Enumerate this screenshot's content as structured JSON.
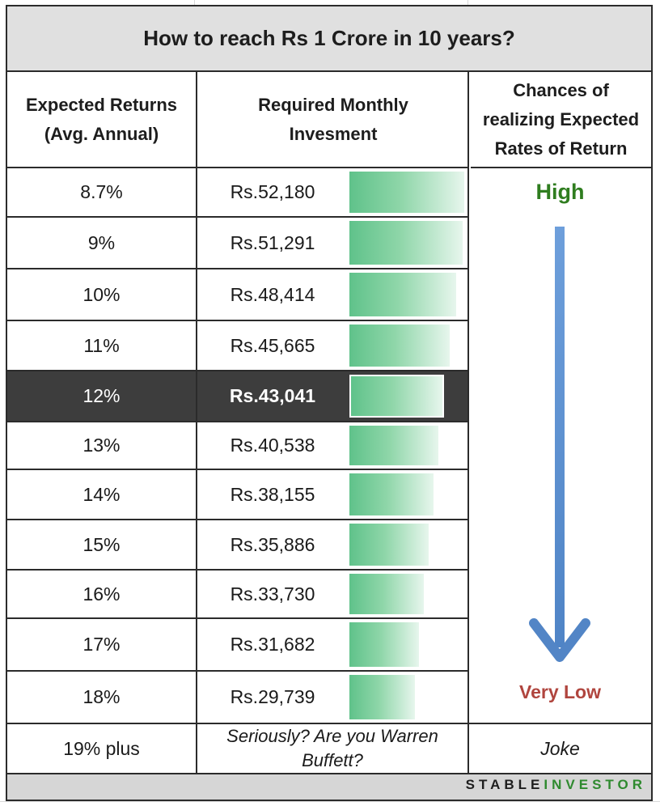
{
  "title": "How to reach Rs 1 Crore in 10 years?",
  "headers": {
    "returns": [
      "Expected Returns",
      "(Avg. Annual)"
    ],
    "investment": [
      "Required Monthly",
      "Invesment"
    ],
    "chances": [
      "Chances of",
      "realizing Expected",
      "Rates of Return"
    ]
  },
  "rows": [
    {
      "return": "8.7%",
      "investment": "Rs.52,180",
      "value": 52180
    },
    {
      "return": "9%",
      "investment": "Rs.51,291",
      "value": 51291
    },
    {
      "return": "10%",
      "investment": "Rs.48,414",
      "value": 48414
    },
    {
      "return": "11%",
      "investment": "Rs.45,665",
      "value": 45665
    },
    {
      "return": "12%",
      "investment": "Rs.43,041",
      "value": 43041,
      "highlighted": true
    },
    {
      "return": "13%",
      "investment": "Rs.40,538",
      "value": 40538
    },
    {
      "return": "14%",
      "investment": "Rs.38,155",
      "value": 38155
    },
    {
      "return": "15%",
      "investment": "Rs.35,886",
      "value": 35886
    },
    {
      "return": "16%",
      "investment": "Rs.33,730",
      "value": 33730
    },
    {
      "return": "17%",
      "investment": "Rs.31,682",
      "value": 31682
    },
    {
      "return": "18%",
      "investment": "Rs.29,739",
      "value": 29739
    }
  ],
  "last_row": {
    "return": "19% plus",
    "note": [
      "Seriously? Are you Warren",
      "Buffett?"
    ],
    "chance": "Joke"
  },
  "chances": {
    "high": "High",
    "low": "Very Low",
    "high_color": "#2f7d1f",
    "low_color": "#b0453e",
    "arrow_color": "#5b8fd0",
    "arrow_icon": "arrow-down-icon"
  },
  "colors": {
    "bar": "#5fc28a",
    "highlight_row": "#3d3d3d",
    "title_bg": "#e0e0e0"
  },
  "brand": {
    "part1": "STABLE",
    "part2": "INVESTOR"
  }
}
